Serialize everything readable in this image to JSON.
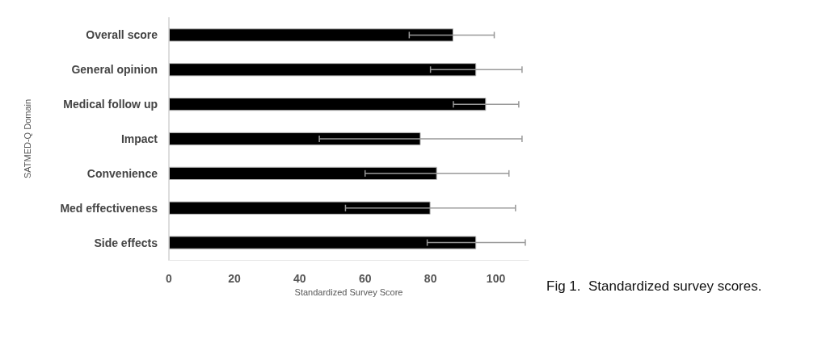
{
  "chart_data": {
    "type": "bar",
    "orientation": "horizontal",
    "xlabel": "Standardized Survey Score",
    "ylabel": "SATMED-Q Domain",
    "categories": [
      "Overall score",
      "General opinion",
      "Medical follow up",
      "Impact",
      "Convenience",
      "Med effectiveness",
      "Side effects"
    ],
    "values": [
      87,
      94,
      97,
      77,
      82,
      80,
      94
    ],
    "errors": [
      [
        73.5,
        99.5
      ],
      [
        80,
        108
      ],
      [
        87,
        107
      ],
      [
        46,
        108
      ],
      [
        60,
        104
      ],
      [
        54,
        106
      ],
      [
        79,
        109
      ]
    ],
    "color": "#000000",
    "xlim": [
      0,
      110
    ],
    "xticks": [
      0,
      20,
      40,
      60,
      80,
      100
    ],
    "grid": false,
    "annotations": [
      "Fig 1.  Standardized survey scores."
    ]
  }
}
